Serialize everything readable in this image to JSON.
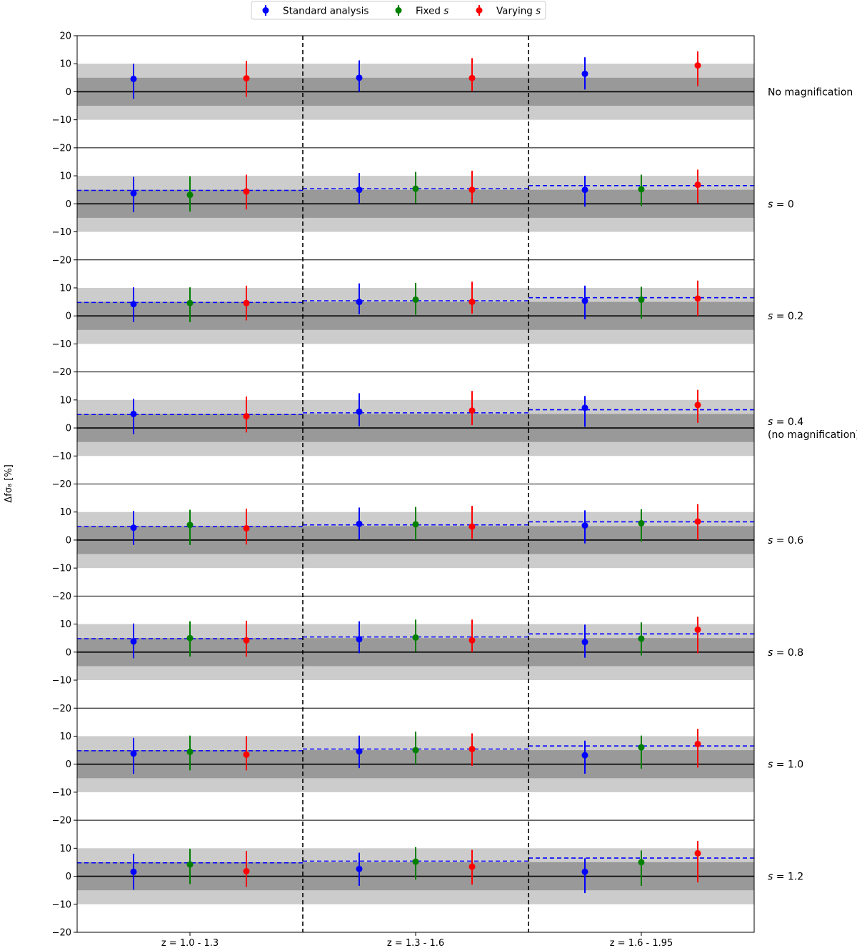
{
  "chart_data": {
    "type": "scatter",
    "ylabel": "Δfσ₈ [%]",
    "ylim": [
      -20,
      20
    ],
    "yticks": [
      "20",
      "10",
      "0",
      "−10",
      "−20"
    ],
    "bins": [
      "z = 1.0 - 1.3",
      "z = 1.3 - 1.6",
      "z = 1.6 - 1.95"
    ],
    "legend": {
      "placement": "top-center",
      "entries": [
        {
          "prefix": "Standard analysis",
          "italic": "",
          "color": "#0000ff"
        },
        {
          "prefix": "Fixed ",
          "italic": "s",
          "color": "#008000"
        },
        {
          "prefix": "Varying ",
          "italic": "s",
          "color": "#ff0000"
        }
      ]
    },
    "bands": {
      "inner": 5,
      "outer": 10,
      "inner_color": "#999999",
      "outer_color": "#cccccc"
    },
    "colors": {
      "standard": "#0000ff",
      "fixed": "#008000",
      "varying": "#ff0000"
    },
    "reference_lines": {
      "style": "dashed",
      "color": "#0000ff",
      "values": [
        4.8,
        5.4,
        6.5
      ]
    },
    "panels": [
      {
        "label_lines": [
          "No magnification"
        ],
        "italic_s": false,
        "reference": false,
        "bins": [
          {
            "standard": [
              4.6,
              -2.5,
              10.0
            ],
            "fixed": null,
            "varying": [
              4.8,
              -1.8,
              11.0
            ]
          },
          {
            "standard": [
              5.0,
              0.0,
              11.2
            ],
            "fixed": null,
            "varying": [
              4.9,
              0.2,
              12.0
            ]
          },
          {
            "standard": [
              6.4,
              0.8,
              12.3
            ],
            "fixed": null,
            "varying": [
              9.4,
              2.0,
              14.4
            ]
          }
        ]
      },
      {
        "label_lines": [
          "s = 0"
        ],
        "italic_s": true,
        "reference": true,
        "bins": [
          {
            "standard": [
              3.8,
              -3.0,
              9.6
            ],
            "fixed": [
              3.2,
              -2.8,
              9.8
            ],
            "varying": [
              4.4,
              -2.0,
              10.4
            ]
          },
          {
            "standard": [
              5.0,
              0.0,
              11.0
            ],
            "fixed": [
              5.4,
              0.2,
              11.4
            ],
            "varying": [
              5.0,
              0.2,
              11.8
            ]
          },
          {
            "standard": [
              5.0,
              -1.0,
              10.0
            ],
            "fixed": [
              5.2,
              -0.8,
              10.4
            ],
            "varying": [
              6.8,
              0.2,
              12.2
            ]
          }
        ]
      },
      {
        "label_lines": [
          "s = 0.2"
        ],
        "italic_s": true,
        "reference": true,
        "bins": [
          {
            "standard": [
              4.2,
              -2.2,
              10.2
            ],
            "fixed": [
              4.6,
              -2.2,
              10.2
            ],
            "varying": [
              4.6,
              -1.6,
              10.8
            ]
          },
          {
            "standard": [
              5.0,
              0.6,
              11.6
            ],
            "fixed": [
              5.8,
              0.4,
              11.8
            ],
            "varying": [
              5.0,
              0.8,
              12.2
            ]
          },
          {
            "standard": [
              5.4,
              -1.2,
              10.8
            ],
            "fixed": [
              5.8,
              -1.0,
              10.4
            ],
            "varying": [
              6.2,
              0.0,
              12.6
            ]
          }
        ]
      },
      {
        "label_lines": [
          "s = 0.4",
          "(no magnification)"
        ],
        "italic_s": true,
        "reference": true,
        "bins": [
          {
            "standard": [
              5.0,
              -2.2,
              10.4
            ],
            "fixed": null,
            "varying": [
              4.2,
              -1.6,
              11.2
            ]
          },
          {
            "standard": [
              5.8,
              0.6,
              12.4
            ],
            "fixed": null,
            "varying": [
              6.2,
              1.0,
              13.2
            ]
          },
          {
            "standard": [
              7.2,
              0.4,
              11.4
            ],
            "fixed": null,
            "varying": [
              8.2,
              1.8,
              13.6
            ]
          }
        ]
      },
      {
        "label_lines": [
          "s = 0.6"
        ],
        "italic_s": true,
        "reference": true,
        "bins": [
          {
            "standard": [
              4.4,
              -1.8,
              10.4
            ],
            "fixed": [
              5.4,
              -1.8,
              10.8
            ],
            "varying": [
              4.2,
              -1.6,
              11.2
            ]
          },
          {
            "standard": [
              5.8,
              0.2,
              11.6
            ],
            "fixed": [
              5.6,
              0.0,
              11.8
            ],
            "varying": [
              4.8,
              0.4,
              12.2
            ]
          },
          {
            "standard": [
              5.2,
              -1.2,
              10.6
            ],
            "fixed": [
              6.0,
              -0.6,
              11.0
            ],
            "varying": [
              6.6,
              0.0,
              12.8
            ]
          }
        ]
      },
      {
        "label_lines": [
          "s = 0.8"
        ],
        "italic_s": true,
        "reference": true,
        "bins": [
          {
            "standard": [
              3.8,
              -2.2,
              10.2
            ],
            "fixed": [
              5.0,
              -1.6,
              11.0
            ],
            "varying": [
              4.2,
              -1.6,
              11.2
            ]
          },
          {
            "standard": [
              4.6,
              -0.4,
              11.0
            ],
            "fixed": [
              5.2,
              0.2,
              11.6
            ],
            "varying": [
              4.2,
              0.0,
              11.6
            ]
          },
          {
            "standard": [
              3.6,
              -2.0,
              9.8
            ],
            "fixed": [
              4.8,
              -1.2,
              10.6
            ],
            "varying": [
              8.0,
              -0.4,
              12.6
            ]
          }
        ]
      },
      {
        "label_lines": [
          "s = 1.0"
        ],
        "italic_s": true,
        "reference": true,
        "bins": [
          {
            "standard": [
              3.8,
              -3.4,
              9.4
            ],
            "fixed": [
              4.4,
              -2.2,
              10.2
            ],
            "varying": [
              3.4,
              -2.2,
              10.0
            ]
          },
          {
            "standard": [
              4.6,
              -1.4,
              10.2
            ],
            "fixed": [
              5.0,
              0.0,
              11.6
            ],
            "varying": [
              5.4,
              -0.6,
              11.0
            ]
          },
          {
            "standard": [
              3.2,
              -3.4,
              8.4
            ],
            "fixed": [
              6.0,
              -1.6,
              10.2
            ],
            "varying": [
              7.2,
              -1.2,
              12.6
            ]
          }
        ]
      },
      {
        "label_lines": [
          "s = 1.2"
        ],
        "italic_s": true,
        "reference": true,
        "bins": [
          {
            "standard": [
              1.6,
              -4.8,
              8.0
            ],
            "fixed": [
              4.2,
              -2.8,
              9.8
            ],
            "varying": [
              1.8,
              -3.8,
              9.0
            ]
          },
          {
            "standard": [
              2.6,
              -3.4,
              8.4
            ],
            "fixed": [
              5.2,
              -1.2,
              10.4
            ],
            "varying": [
              3.4,
              -3.0,
              9.4
            ]
          },
          {
            "standard": [
              1.6,
              -6.0,
              6.4
            ],
            "fixed": [
              5.0,
              -3.4,
              9.2
            ],
            "varying": [
              8.2,
              -2.2,
              12.6
            ]
          }
        ]
      }
    ]
  }
}
